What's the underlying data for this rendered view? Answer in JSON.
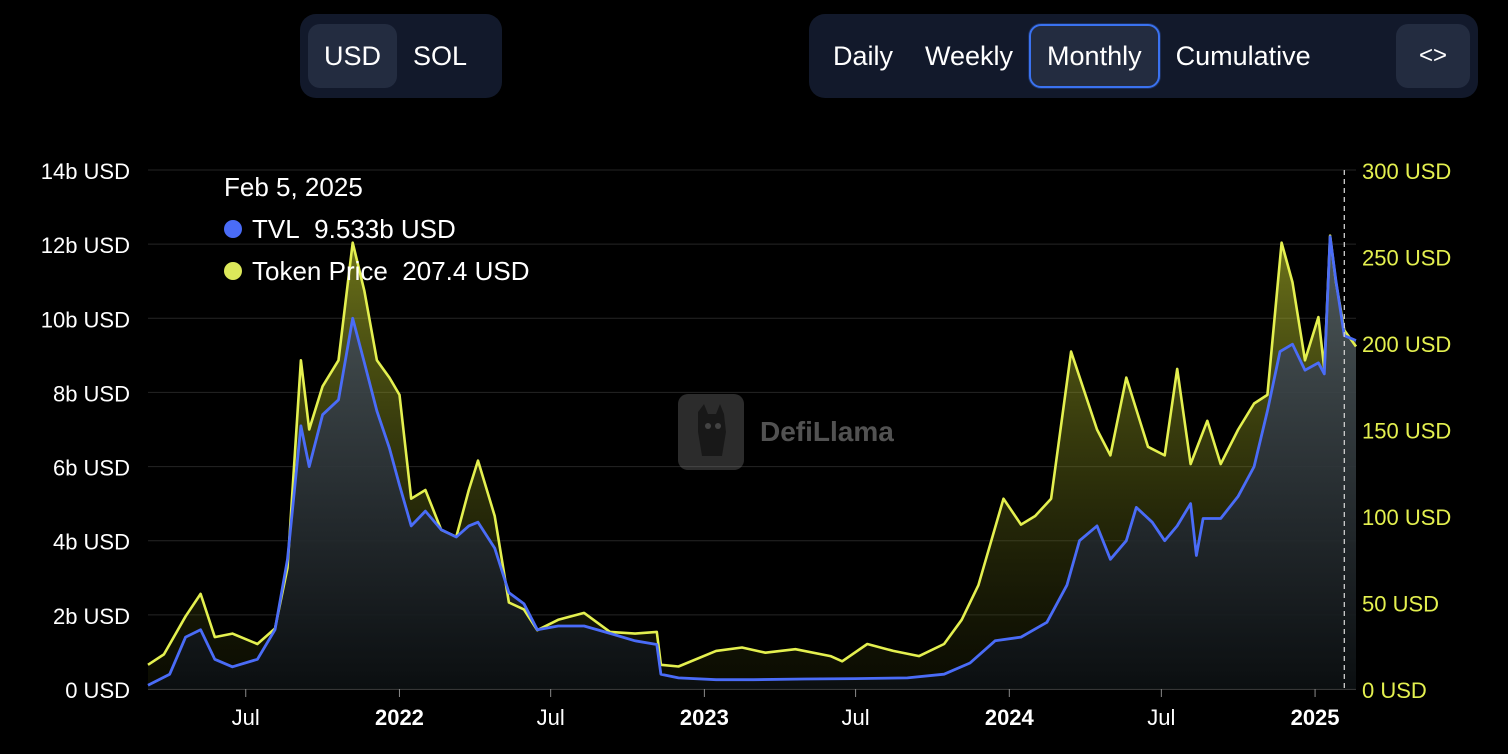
{
  "currency_toggle": {
    "options": [
      "USD",
      "SOL"
    ],
    "selected": "USD"
  },
  "period_toggle": {
    "options": [
      "Daily",
      "Weekly",
      "Monthly",
      "Cumulative"
    ],
    "selected": "Monthly",
    "code_icon": "code-brackets-icon",
    "code_label": "<>"
  },
  "tooltip": {
    "date": "Feb 5, 2025",
    "rows": [
      {
        "label": "TVL",
        "value": "9.533b USD",
        "color": "#4a6cf7"
      },
      {
        "label": "Token Price",
        "value": "207.4 USD",
        "color": "#dce85a"
      }
    ]
  },
  "watermark": {
    "text": "DefiLlama",
    "icon": "llama-logo-icon"
  },
  "colors": {
    "tvl": "#4a6cf7",
    "price": "#e4f04f",
    "grid": "#252525",
    "right_axis": "#e4f04f"
  },
  "chart_data": {
    "type": "line",
    "x_axis": {
      "range": [
        "2021-03-06",
        "2025-02-19"
      ],
      "ticks": [
        {
          "date": "2021-07-01",
          "label": "Jul",
          "bold": false
        },
        {
          "date": "2022-01-01",
          "label": "2022",
          "bold": true
        },
        {
          "date": "2022-07-01",
          "label": "Jul",
          "bold": false
        },
        {
          "date": "2023-01-01",
          "label": "2023",
          "bold": true
        },
        {
          "date": "2023-07-01",
          "label": "Jul",
          "bold": false
        },
        {
          "date": "2024-01-01",
          "label": "2024",
          "bold": true
        },
        {
          "date": "2024-07-01",
          "label": "Jul",
          "bold": false
        },
        {
          "date": "2025-01-01",
          "label": "2025",
          "bold": true
        }
      ]
    },
    "y_left": {
      "range": [
        0,
        14
      ],
      "ticks": [
        0,
        2,
        4,
        6,
        8,
        10,
        12,
        14
      ],
      "labels": [
        "0 USD",
        "2b USD",
        "4b USD",
        "6b USD",
        "8b USD",
        "10b USD",
        "12b USD",
        "14b USD"
      ]
    },
    "y_right": {
      "range": [
        0,
        300
      ],
      "ticks": [
        0,
        50,
        100,
        150,
        200,
        250,
        300
      ],
      "labels": [
        "0 USD",
        "50 USD",
        "100 USD",
        "150 USD",
        "200 USD",
        "250 USD",
        "300 USD"
      ]
    },
    "grid": true,
    "hover_date": "2025-02-05",
    "series": [
      {
        "name": "TVL",
        "axis": "left",
        "unit": "billion USD",
        "points": [
          [
            "2021-03-06",
            0.1
          ],
          [
            "2021-04-01",
            0.4
          ],
          [
            "2021-04-20",
            1.4
          ],
          [
            "2021-05-08",
            1.6
          ],
          [
            "2021-05-25",
            0.8
          ],
          [
            "2021-06-15",
            0.6
          ],
          [
            "2021-07-15",
            0.8
          ],
          [
            "2021-08-05",
            1.6
          ],
          [
            "2021-08-20",
            3.5
          ],
          [
            "2021-09-05",
            7.1
          ],
          [
            "2021-09-15",
            6.0
          ],
          [
            "2021-10-01",
            7.4
          ],
          [
            "2021-10-20",
            7.8
          ],
          [
            "2021-11-06",
            10.0
          ],
          [
            "2021-11-20",
            8.8
          ],
          [
            "2021-12-05",
            7.5
          ],
          [
            "2021-12-20",
            6.5
          ],
          [
            "2022-01-01",
            5.5
          ],
          [
            "2022-01-15",
            4.4
          ],
          [
            "2022-02-01",
            4.8
          ],
          [
            "2022-02-20",
            4.3
          ],
          [
            "2022-03-10",
            4.1
          ],
          [
            "2022-03-25",
            4.4
          ],
          [
            "2022-04-05",
            4.5
          ],
          [
            "2022-04-25",
            3.8
          ],
          [
            "2022-05-12",
            2.6
          ],
          [
            "2022-05-30",
            2.3
          ],
          [
            "2022-06-15",
            1.6
          ],
          [
            "2022-07-10",
            1.7
          ],
          [
            "2022-08-10",
            1.7
          ],
          [
            "2022-09-10",
            1.5
          ],
          [
            "2022-10-10",
            1.3
          ],
          [
            "2022-11-05",
            1.2
          ],
          [
            "2022-11-10",
            0.4
          ],
          [
            "2022-12-01",
            0.3
          ],
          [
            "2023-01-15",
            0.25
          ],
          [
            "2023-03-01",
            0.25
          ],
          [
            "2023-05-01",
            0.27
          ],
          [
            "2023-07-01",
            0.28
          ],
          [
            "2023-09-01",
            0.3
          ],
          [
            "2023-10-15",
            0.4
          ],
          [
            "2023-11-15",
            0.7
          ],
          [
            "2023-12-15",
            1.3
          ],
          [
            "2024-01-15",
            1.4
          ],
          [
            "2024-02-15",
            1.8
          ],
          [
            "2024-03-10",
            2.8
          ],
          [
            "2024-03-25",
            4.0
          ],
          [
            "2024-04-15",
            4.4
          ],
          [
            "2024-05-01",
            3.5
          ],
          [
            "2024-05-20",
            4.0
          ],
          [
            "2024-06-01",
            4.9
          ],
          [
            "2024-06-20",
            4.5
          ],
          [
            "2024-07-05",
            4.0
          ],
          [
            "2024-07-20",
            4.4
          ],
          [
            "2024-08-05",
            5.0
          ],
          [
            "2024-08-12",
            3.6
          ],
          [
            "2024-08-20",
            4.6
          ],
          [
            "2024-09-10",
            4.6
          ],
          [
            "2024-10-01",
            5.2
          ],
          [
            "2024-10-20",
            6.0
          ],
          [
            "2024-11-05",
            7.5
          ],
          [
            "2024-11-20",
            9.1
          ],
          [
            "2024-12-05",
            9.3
          ],
          [
            "2024-12-20",
            8.6
          ],
          [
            "2025-01-05",
            8.8
          ],
          [
            "2025-01-12",
            8.5
          ],
          [
            "2025-01-19",
            12.2
          ],
          [
            "2025-01-26",
            11.0
          ],
          [
            "2025-02-05",
            9.533
          ],
          [
            "2025-02-19",
            9.4
          ]
        ]
      },
      {
        "name": "Token Price",
        "axis": "right",
        "unit": "USD",
        "points": [
          [
            "2021-03-06",
            14
          ],
          [
            "2021-03-25",
            20
          ],
          [
            "2021-04-20",
            42
          ],
          [
            "2021-05-08",
            55
          ],
          [
            "2021-05-25",
            30
          ],
          [
            "2021-06-15",
            32
          ],
          [
            "2021-07-15",
            26
          ],
          [
            "2021-08-05",
            35
          ],
          [
            "2021-08-20",
            70
          ],
          [
            "2021-09-05",
            190
          ],
          [
            "2021-09-15",
            150
          ],
          [
            "2021-10-01",
            175
          ],
          [
            "2021-10-20",
            190
          ],
          [
            "2021-11-06",
            258
          ],
          [
            "2021-11-20",
            230
          ],
          [
            "2021-12-05",
            190
          ],
          [
            "2021-12-20",
            180
          ],
          [
            "2022-01-01",
            170
          ],
          [
            "2022-01-15",
            110
          ],
          [
            "2022-02-01",
            115
          ],
          [
            "2022-02-20",
            92
          ],
          [
            "2022-03-10",
            88
          ],
          [
            "2022-03-25",
            115
          ],
          [
            "2022-04-05",
            132
          ],
          [
            "2022-04-25",
            100
          ],
          [
            "2022-05-12",
            50
          ],
          [
            "2022-05-30",
            46
          ],
          [
            "2022-06-15",
            34
          ],
          [
            "2022-07-10",
            40
          ],
          [
            "2022-08-10",
            44
          ],
          [
            "2022-09-10",
            33
          ],
          [
            "2022-10-10",
            32
          ],
          [
            "2022-11-05",
            33
          ],
          [
            "2022-11-10",
            14
          ],
          [
            "2022-12-01",
            13
          ],
          [
            "2023-01-15",
            22
          ],
          [
            "2023-02-15",
            24
          ],
          [
            "2023-03-15",
            21
          ],
          [
            "2023-04-20",
            23
          ],
          [
            "2023-06-01",
            19
          ],
          [
            "2023-06-15",
            16
          ],
          [
            "2023-07-15",
            26
          ],
          [
            "2023-08-15",
            22
          ],
          [
            "2023-09-15",
            19
          ],
          [
            "2023-10-15",
            26
          ],
          [
            "2023-11-05",
            40
          ],
          [
            "2023-11-25",
            60
          ],
          [
            "2023-12-25",
            110
          ],
          [
            "2024-01-15",
            95
          ],
          [
            "2024-02-01",
            100
          ],
          [
            "2024-02-20",
            110
          ],
          [
            "2024-03-15",
            195
          ],
          [
            "2024-04-15",
            150
          ],
          [
            "2024-05-01",
            135
          ],
          [
            "2024-05-20",
            180
          ],
          [
            "2024-06-15",
            140
          ],
          [
            "2024-07-05",
            135
          ],
          [
            "2024-07-20",
            185
          ],
          [
            "2024-08-05",
            130
          ],
          [
            "2024-08-25",
            155
          ],
          [
            "2024-09-10",
            130
          ],
          [
            "2024-10-01",
            150
          ],
          [
            "2024-10-20",
            165
          ],
          [
            "2024-11-05",
            170
          ],
          [
            "2024-11-22",
            258
          ],
          [
            "2024-12-05",
            235
          ],
          [
            "2024-12-20",
            190
          ],
          [
            "2025-01-05",
            215
          ],
          [
            "2025-01-12",
            185
          ],
          [
            "2025-01-19",
            262
          ],
          [
            "2025-01-26",
            235
          ],
          [
            "2025-02-05",
            207.4
          ],
          [
            "2025-02-19",
            198
          ]
        ]
      }
    ]
  }
}
